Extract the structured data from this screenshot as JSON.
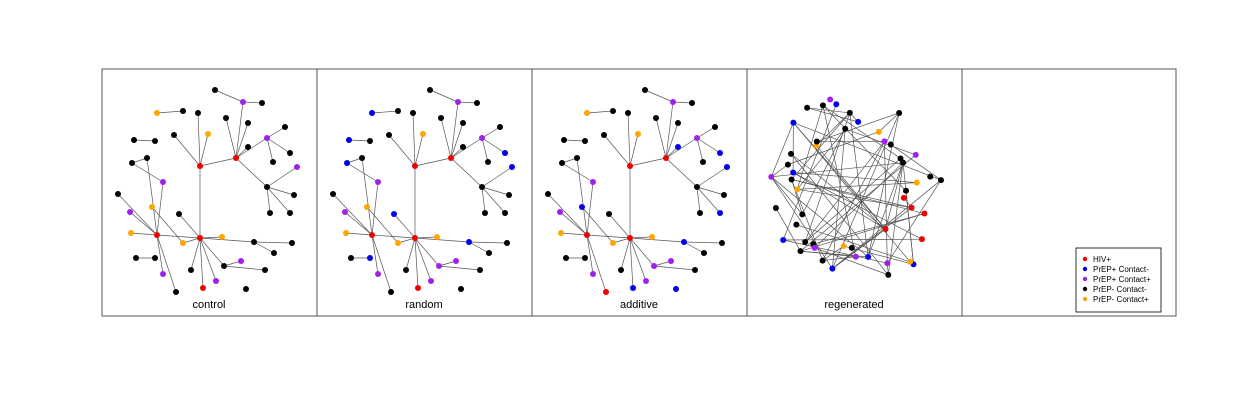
{
  "colors": {
    "hiv_pos": "#ee0000",
    "prep_pos_contact_neg": "#0000ee",
    "prep_pos_contact_pos": "#a020f0",
    "prep_neg_contact_neg": "#000000",
    "prep_neg_contact_pos": "#ffa500",
    "edge": "#555555",
    "frame": "#555555"
  },
  "panels": [
    {
      "id": "control",
      "title": "control"
    },
    {
      "id": "random",
      "title": "random"
    },
    {
      "id": "additive",
      "title": "additive"
    },
    {
      "id": "regenerated",
      "title": "regenerated"
    }
  ],
  "legend": {
    "entries": [
      {
        "label": "HIV+",
        "color": "#ee0000"
      },
      {
        "label": "PrEP+ Contact-",
        "color": "#0000ee"
      },
      {
        "label": "PrEP+ Contact+",
        "color": "#a020f0"
      },
      {
        "label": "PrEP- Contact-",
        "color": "#000000"
      },
      {
        "label": "PrEP- Contact+",
        "color": "#ffa500"
      }
    ]
  }
}
